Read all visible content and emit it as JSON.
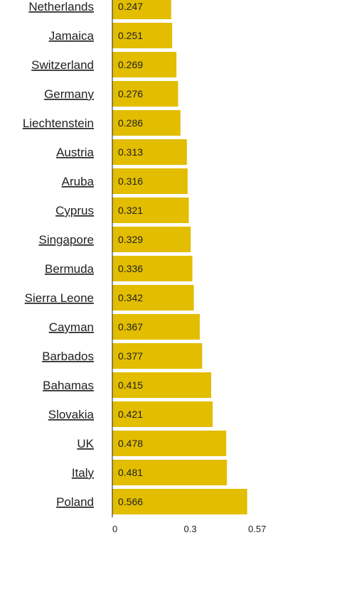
{
  "chart_data": {
    "type": "bar",
    "orientation": "horizontal",
    "categories": [
      "Netherlands",
      "Jamaica",
      "Switzerland",
      "Germany",
      "Liechtenstein",
      "Austria",
      "Aruba",
      "Cyprus",
      "Singapore",
      "Bermuda",
      "Sierra Leone",
      "Cayman",
      "Barbados",
      "Bahamas",
      "Slovakia",
      "UK",
      "Italy",
      "Poland"
    ],
    "values": [
      0.247,
      0.251,
      0.269,
      0.276,
      0.286,
      0.313,
      0.316,
      0.321,
      0.329,
      0.336,
      0.342,
      0.367,
      0.377,
      0.415,
      0.421,
      0.478,
      0.481,
      0.566
    ],
    "value_labels": [
      "0.247",
      "0.251",
      "0.269",
      "0.276",
      "0.286",
      "0.313",
      "0.316",
      "0.321",
      "0.329",
      "0.336",
      "0.342",
      "0.367",
      "0.377",
      "0.415",
      "0.421",
      "0.478",
      "0.481",
      "0.566"
    ],
    "xlim": [
      0,
      0.57
    ],
    "xticks": [
      0,
      0.3,
      0.57
    ],
    "xtick_labels": [
      "0",
      "0.3",
      "0.57"
    ],
    "bar_color": "#e2bd00",
    "title": "",
    "xlabel": "",
    "ylabel": ""
  }
}
